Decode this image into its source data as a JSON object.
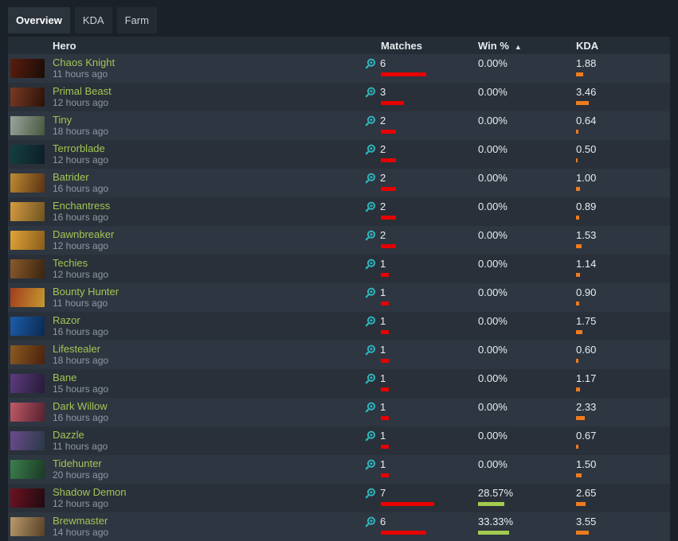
{
  "tabs": [
    {
      "label": "Overview",
      "active": true
    },
    {
      "label": "KDA",
      "active": false
    },
    {
      "label": "Farm",
      "active": false
    }
  ],
  "table": {
    "columns": {
      "hero": "Hero",
      "matches": "Matches",
      "win": "Win %",
      "kda": "KDA"
    },
    "sort_arrow": "▲",
    "sorted_by": "Win %",
    "rows": [
      {
        "hero": "Chaos Knight",
        "last_played": "11 hours ago",
        "matches": 6,
        "win_label": "0.00%",
        "win_value": 0,
        "kda_label": "1.88",
        "kda_value": 1.88,
        "portrait": [
          "#5a1d0e",
          "#1a0c06"
        ]
      },
      {
        "hero": "Primal Beast",
        "last_played": "12 hours ago",
        "matches": 3,
        "win_label": "0.00%",
        "win_value": 0,
        "kda_label": "3.46",
        "kda_value": 3.46,
        "portrait": [
          "#7a3a24",
          "#2a1208"
        ]
      },
      {
        "hero": "Tiny",
        "last_played": "18 hours ago",
        "matches": 2,
        "win_label": "0.00%",
        "win_value": 0,
        "kda_label": "0.64",
        "kda_value": 0.64,
        "portrait": [
          "#9aa49b",
          "#46583f"
        ]
      },
      {
        "hero": "Terrorblade",
        "last_played": "12 hours ago",
        "matches": 2,
        "win_label": "0.00%",
        "win_value": 0,
        "kda_label": "0.50",
        "kda_value": 0.5,
        "portrait": [
          "#14403f",
          "#0d1d28"
        ]
      },
      {
        "hero": "Batrider",
        "last_played": "16 hours ago",
        "matches": 2,
        "win_label": "0.00%",
        "win_value": 0,
        "kda_label": "1.00",
        "kda_value": 1.0,
        "portrait": [
          "#bd8a32",
          "#5a3214"
        ]
      },
      {
        "hero": "Enchantress",
        "last_played": "16 hours ago",
        "matches": 2,
        "win_label": "0.00%",
        "win_value": 0,
        "kda_label": "0.89",
        "kda_value": 0.89,
        "portrait": [
          "#d49a42",
          "#6e5420"
        ]
      },
      {
        "hero": "Dawnbreaker",
        "last_played": "12 hours ago",
        "matches": 2,
        "win_label": "0.00%",
        "win_value": 0,
        "kda_label": "1.53",
        "kda_value": 1.53,
        "portrait": [
          "#e0a437",
          "#8a5c1c"
        ]
      },
      {
        "hero": "Techies",
        "last_played": "12 hours ago",
        "matches": 1,
        "win_label": "0.00%",
        "win_value": 0,
        "kda_label": "1.14",
        "kda_value": 1.14,
        "portrait": [
          "#8a5a2c",
          "#3a2410"
        ]
      },
      {
        "hero": "Bounty Hunter",
        "last_played": "11 hours ago",
        "matches": 1,
        "win_label": "0.00%",
        "win_value": 0,
        "kda_label": "0.90",
        "kda_value": 0.9,
        "portrait": [
          "#a33c1c",
          "#c39a30"
        ]
      },
      {
        "hero": "Razor",
        "last_played": "16 hours ago",
        "matches": 1,
        "win_label": "0.00%",
        "win_value": 0,
        "kda_label": "1.75",
        "kda_value": 1.75,
        "portrait": [
          "#1c5caa",
          "#0a2a50"
        ]
      },
      {
        "hero": "Lifestealer",
        "last_played": "18 hours ago",
        "matches": 1,
        "win_label": "0.00%",
        "win_value": 0,
        "kda_label": "0.60",
        "kda_value": 0.6,
        "portrait": [
          "#8a5a22",
          "#4a220e"
        ]
      },
      {
        "hero": "Bane",
        "last_played": "15 hours ago",
        "matches": 1,
        "win_label": "0.00%",
        "win_value": 0,
        "kda_label": "1.17",
        "kda_value": 1.17,
        "portrait": [
          "#5c3c7e",
          "#281a38"
        ]
      },
      {
        "hero": "Dark Willow",
        "last_played": "16 hours ago",
        "matches": 1,
        "win_label": "0.00%",
        "win_value": 0,
        "kda_label": "2.33",
        "kda_value": 2.33,
        "portrait": [
          "#c05a68",
          "#55202e"
        ]
      },
      {
        "hero": "Dazzle",
        "last_played": "11 hours ago",
        "matches": 1,
        "win_label": "0.00%",
        "win_value": 0,
        "kda_label": "0.67",
        "kda_value": 0.67,
        "portrait": [
          "#6c4a8c",
          "#2a3a48"
        ]
      },
      {
        "hero": "Tidehunter",
        "last_played": "20 hours ago",
        "matches": 1,
        "win_label": "0.00%",
        "win_value": 0,
        "kda_label": "1.50",
        "kda_value": 1.5,
        "portrait": [
          "#3c7e4c",
          "#1a3a24"
        ]
      },
      {
        "hero": "Shadow Demon",
        "last_played": "12 hours ago",
        "matches": 7,
        "win_label": "28.57%",
        "win_value": 28.57,
        "kda_label": "2.65",
        "kda_value": 2.65,
        "portrait": [
          "#6e1222",
          "#1f0a10"
        ]
      },
      {
        "hero": "Brewmaster",
        "last_played": "14 hours ago",
        "matches": 6,
        "win_label": "33.33%",
        "win_value": 33.33,
        "kda_label": "3.55",
        "kda_value": 3.55,
        "portrait": [
          "#b8996a",
          "#564026"
        ]
      }
    ]
  },
  "icons": {
    "matches_icon": "search-plus-icon",
    "sort_icon": "sort-ascending-arrow"
  },
  "colors": {
    "page_bg": "#1b2128",
    "bar_red": "#e80000",
    "bar_green": "#a3cb4e",
    "bar_orange": "#ee7c1e",
    "hero_link": "#a2c655",
    "magnifier_teal": "#31b7be"
  }
}
